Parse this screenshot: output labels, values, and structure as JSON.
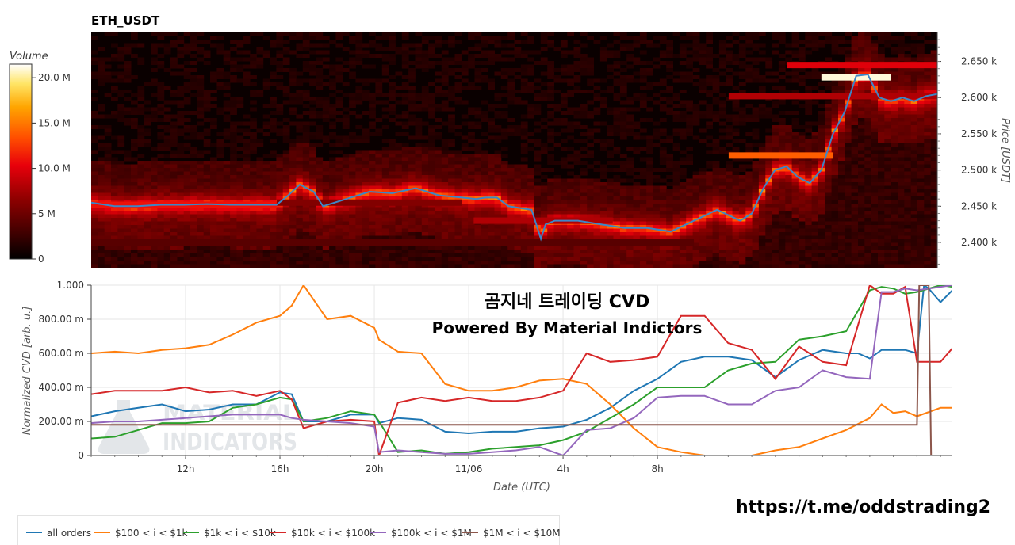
{
  "symbol_title": "ETH_USDT",
  "link_text": "https://t.me/oddstrading2",
  "overlay": {
    "line1": "곰지네 트레이딩 CVD",
    "line2": "Powered By Material Indictors"
  },
  "watermark": {
    "line1": "MATERIAL",
    "line2": "INDICATORS"
  },
  "colorbar": {
    "title": "Volume",
    "ticks": [
      "20.0 M",
      "15.0 M",
      "10.0 M",
      "5 M",
      "0"
    ],
    "tick_values": [
      20,
      15,
      10,
      5,
      0
    ],
    "max": 21.5
  },
  "colors": {
    "all_orders": "#1f77b4",
    "r100_1k": "#ff7f0e",
    "r1k_10k": "#2ca02c",
    "r10k_100k": "#d62728",
    "r100k_1m": "#9467bd",
    "r1m_10m": "#8c564b"
  },
  "chart_data": [
    {
      "type": "heatmap",
      "title": "ETH_USDT",
      "ylabel": "Price [USDT]",
      "ylim": [
        2365,
        2690
      ],
      "y_ticks": [
        "2.650 k",
        "2.600 k",
        "2.550 k",
        "2.500 k",
        "2.450 k",
        "2.400 k"
      ],
      "y_tick_values": [
        2650,
        2600,
        2550,
        2500,
        2450,
        2400
      ],
      "x_range_hours": [
        0,
        36.5
      ],
      "colorbar_title": "Volume",
      "price_line": {
        "name": "price",
        "x_hours": [
          0,
          1,
          2,
          3,
          4,
          5,
          6,
          7,
          8,
          8.5,
          9,
          9.6,
          10,
          11,
          12,
          13,
          14,
          15,
          16,
          16.6,
          17,
          17.5,
          18,
          19,
          19.4,
          19.6,
          20,
          21,
          22,
          23,
          24,
          25,
          26,
          27,
          28,
          28.5,
          29,
          29.5,
          30,
          30.5,
          31,
          31.5,
          32,
          32.5,
          33,
          33.5,
          34,
          34.5,
          35,
          35.5,
          36,
          36.5
        ],
        "y": [
          2455,
          2450,
          2450,
          2452,
          2452,
          2453,
          2452,
          2452,
          2452,
          2465,
          2480,
          2470,
          2450,
          2460,
          2470,
          2468,
          2475,
          2465,
          2462,
          2460,
          2462,
          2462,
          2450,
          2445,
          2405,
          2425,
          2430,
          2430,
          2425,
          2420,
          2420,
          2415,
          2430,
          2445,
          2430,
          2440,
          2475,
          2500,
          2505,
          2490,
          2482,
          2500,
          2550,
          2580,
          2630,
          2632,
          2600,
          2595,
          2600,
          2595,
          2602,
          2605
        ]
      },
      "volume_bands": [
        {
          "price": 2452,
          "x_hours": [
            0,
            8
          ],
          "volume": 11
        },
        {
          "price": 2455,
          "x_hours": [
            8,
            16
          ],
          "volume": 6
        },
        {
          "price": 2430,
          "x_hours": [
            16.5,
            22.5
          ],
          "volume": 8
        },
        {
          "price": 2400,
          "x_hours": [
            0,
            26
          ],
          "volume": 4
        },
        {
          "price": 2520,
          "x_hours": [
            27.5,
            32
          ],
          "volume": 14
        },
        {
          "price": 2645,
          "x_hours": [
            30,
            36.5
          ],
          "volume": 10
        },
        {
          "price": 2628,
          "x_hours": [
            31.5,
            34.5
          ],
          "volume": 21
        },
        {
          "price": 2602,
          "x_hours": [
            27.5,
            36.5
          ],
          "volume": 8
        }
      ]
    },
    {
      "type": "line",
      "title": "곰지네 트레이딩 CVD",
      "subtitle": "Powered By Material Indictors",
      "xlabel": "Date (UTC)",
      "ylabel": "Normalized CVD [arb. u.]",
      "ylim": [
        0,
        1
      ],
      "x_range_hours": [
        0,
        36.5
      ],
      "x_ticks": [
        "12h",
        "16h",
        "20h",
        "11/06",
        "4h",
        "8h"
      ],
      "x_tick_hours": [
        4,
        8,
        12,
        16,
        20,
        24
      ],
      "y_ticks": [
        "1.000",
        "800.00 m",
        "600.00 m",
        "400.00 m",
        "200.00 m",
        "0"
      ],
      "y_tick_values": [
        1.0,
        0.8,
        0.6,
        0.4,
        0.2,
        0
      ],
      "legend_position": "bottom",
      "series": [
        {
          "name": "all orders",
          "x_hours": [
            0,
            1,
            2,
            3,
            4,
            5,
            6,
            7,
            8,
            8.5,
            9,
            10,
            11,
            12,
            12.2,
            13,
            14,
            15,
            16,
            17,
            18,
            19,
            20,
            21,
            22,
            23,
            24,
            25,
            26,
            27,
            28,
            29,
            30,
            31,
            32,
            32.5,
            33,
            33.5,
            34,
            34.5,
            35,
            35.3,
            35.5,
            36,
            36.5
          ],
          "y": [
            0.23,
            0.26,
            0.28,
            0.3,
            0.26,
            0.27,
            0.3,
            0.3,
            0.37,
            0.36,
            0.2,
            0.2,
            0.24,
            0.24,
            0.19,
            0.22,
            0.21,
            0.14,
            0.13,
            0.14,
            0.14,
            0.16,
            0.17,
            0.21,
            0.28,
            0.38,
            0.45,
            0.55,
            0.58,
            0.58,
            0.56,
            0.46,
            0.56,
            0.62,
            0.6,
            0.6,
            0.57,
            0.62,
            0.62,
            0.62,
            0.6,
            1.0,
            0.98,
            0.9,
            0.97
          ]
        },
        {
          "name": "$100 < i < $1k",
          "x_hours": [
            0,
            1,
            2,
            3,
            4,
            5,
            6,
            7,
            8,
            8.5,
            9,
            10,
            11,
            12,
            12.2,
            13,
            14,
            15,
            16,
            17,
            18,
            19,
            20,
            21,
            22,
            23,
            24,
            25,
            26,
            27,
            28,
            29,
            30,
            31,
            32,
            33,
            33.5,
            34,
            34.5,
            35,
            36,
            36.5
          ],
          "y": [
            0.6,
            0.61,
            0.6,
            0.62,
            0.63,
            0.65,
            0.71,
            0.78,
            0.82,
            0.88,
            1.0,
            0.8,
            0.82,
            0.75,
            0.68,
            0.61,
            0.6,
            0.42,
            0.38,
            0.38,
            0.4,
            0.44,
            0.45,
            0.42,
            0.3,
            0.16,
            0.05,
            0.02,
            0.0,
            0.0,
            0.0,
            0.03,
            0.05,
            0.1,
            0.15,
            0.22,
            0.3,
            0.25,
            0.26,
            0.23,
            0.28,
            0.28
          ]
        },
        {
          "name": "$1k < i < $10k",
          "x_hours": [
            0,
            1,
            2,
            3,
            4,
            5,
            6,
            7,
            8,
            8.5,
            9,
            10,
            11,
            12,
            12.2,
            13,
            14,
            15,
            16,
            17,
            18,
            19,
            20,
            21,
            22,
            23,
            24,
            25,
            26,
            27,
            28,
            29,
            30,
            31,
            32,
            33,
            33.5,
            34,
            34.5,
            35,
            36,
            36.5
          ],
          "y": [
            0.1,
            0.11,
            0.15,
            0.19,
            0.19,
            0.2,
            0.28,
            0.3,
            0.34,
            0.33,
            0.2,
            0.22,
            0.26,
            0.24,
            0.2,
            0.02,
            0.03,
            0.01,
            0.02,
            0.04,
            0.05,
            0.06,
            0.09,
            0.14,
            0.22,
            0.3,
            0.4,
            0.4,
            0.4,
            0.5,
            0.54,
            0.55,
            0.68,
            0.7,
            0.73,
            0.97,
            0.99,
            0.98,
            0.95,
            0.96,
            1.0,
            0.99
          ]
        },
        {
          "name": "$10k < i < $100k",
          "x_hours": [
            0,
            1,
            2,
            3,
            4,
            5,
            6,
            7,
            8,
            8.5,
            9,
            10,
            11,
            12,
            12.2,
            13,
            14,
            15,
            16,
            17,
            18,
            19,
            20,
            21,
            22,
            23,
            24,
            25,
            26,
            27,
            28,
            29,
            30,
            31,
            32,
            33,
            33.5,
            34,
            34.5,
            35,
            36,
            36.5
          ],
          "y": [
            0.36,
            0.38,
            0.38,
            0.38,
            0.4,
            0.37,
            0.38,
            0.35,
            0.38,
            0.33,
            0.16,
            0.2,
            0.21,
            0.2,
            0.0,
            0.31,
            0.34,
            0.32,
            0.34,
            0.32,
            0.32,
            0.34,
            0.38,
            0.6,
            0.55,
            0.56,
            0.58,
            0.82,
            0.82,
            0.66,
            0.62,
            0.45,
            0.64,
            0.55,
            0.53,
            1.0,
            0.95,
            0.95,
            0.99,
            0.55,
            0.55,
            0.63
          ]
        },
        {
          "name": "$100k < i < $1M",
          "x_hours": [
            0,
            1,
            2,
            3,
            4,
            5,
            6,
            7,
            8,
            8.5,
            9,
            10,
            11,
            12,
            12.2,
            13,
            14,
            15,
            16,
            17,
            18,
            19,
            20,
            21,
            22,
            23,
            24,
            25,
            26,
            27,
            28,
            29,
            30,
            31,
            32,
            33,
            33.5,
            34,
            34.5,
            35,
            36,
            36.5
          ],
          "y": [
            0.19,
            0.2,
            0.2,
            0.21,
            0.22,
            0.23,
            0.24,
            0.24,
            0.24,
            0.22,
            0.21,
            0.2,
            0.19,
            0.17,
            0.02,
            0.03,
            0.02,
            0.01,
            0.01,
            0.02,
            0.03,
            0.05,
            0.0,
            0.15,
            0.16,
            0.22,
            0.34,
            0.35,
            0.35,
            0.3,
            0.3,
            0.38,
            0.4,
            0.5,
            0.46,
            0.45,
            0.96,
            0.96,
            0.98,
            0.97,
            0.99,
            1.0
          ]
        },
        {
          "name": "$1M < i < $10M",
          "x_hours": [
            0,
            12,
            12.3,
            35,
            35.1,
            35.2,
            35.5,
            35.6,
            36.5
          ],
          "y": [
            0.18,
            0.18,
            0.18,
            0.18,
            1.0,
            1.0,
            1.0,
            0.0,
            0.0
          ]
        }
      ]
    }
  ]
}
